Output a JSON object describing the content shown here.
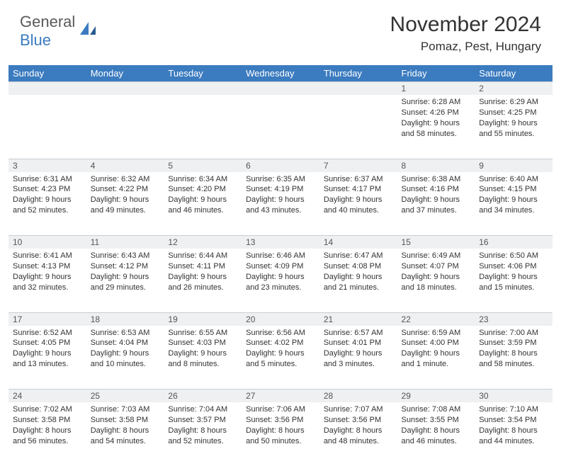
{
  "brand": {
    "part1": "General",
    "part2": "Blue"
  },
  "title": "November 2024",
  "location": "Pomaz, Pest, Hungary",
  "colors": {
    "header_bg": "#3b7bbf",
    "header_fg": "#ffffff",
    "daynum_bg": "#eef0f2",
    "border": "#c9cdd2",
    "text": "#333333",
    "logo_gray": "#5a5a5a",
    "logo_blue": "#3b7bbf"
  },
  "weekdays": [
    "Sunday",
    "Monday",
    "Tuesday",
    "Wednesday",
    "Thursday",
    "Friday",
    "Saturday"
  ],
  "weeks": [
    [
      null,
      null,
      null,
      null,
      null,
      {
        "n": "1",
        "sr": "Sunrise: 6:28 AM",
        "ss": "Sunset: 4:26 PM",
        "d1": "Daylight: 9 hours",
        "d2": "and 58 minutes."
      },
      {
        "n": "2",
        "sr": "Sunrise: 6:29 AM",
        "ss": "Sunset: 4:25 PM",
        "d1": "Daylight: 9 hours",
        "d2": "and 55 minutes."
      }
    ],
    [
      {
        "n": "3",
        "sr": "Sunrise: 6:31 AM",
        "ss": "Sunset: 4:23 PM",
        "d1": "Daylight: 9 hours",
        "d2": "and 52 minutes."
      },
      {
        "n": "4",
        "sr": "Sunrise: 6:32 AM",
        "ss": "Sunset: 4:22 PM",
        "d1": "Daylight: 9 hours",
        "d2": "and 49 minutes."
      },
      {
        "n": "5",
        "sr": "Sunrise: 6:34 AM",
        "ss": "Sunset: 4:20 PM",
        "d1": "Daylight: 9 hours",
        "d2": "and 46 minutes."
      },
      {
        "n": "6",
        "sr": "Sunrise: 6:35 AM",
        "ss": "Sunset: 4:19 PM",
        "d1": "Daylight: 9 hours",
        "d2": "and 43 minutes."
      },
      {
        "n": "7",
        "sr": "Sunrise: 6:37 AM",
        "ss": "Sunset: 4:17 PM",
        "d1": "Daylight: 9 hours",
        "d2": "and 40 minutes."
      },
      {
        "n": "8",
        "sr": "Sunrise: 6:38 AM",
        "ss": "Sunset: 4:16 PM",
        "d1": "Daylight: 9 hours",
        "d2": "and 37 minutes."
      },
      {
        "n": "9",
        "sr": "Sunrise: 6:40 AM",
        "ss": "Sunset: 4:15 PM",
        "d1": "Daylight: 9 hours",
        "d2": "and 34 minutes."
      }
    ],
    [
      {
        "n": "10",
        "sr": "Sunrise: 6:41 AM",
        "ss": "Sunset: 4:13 PM",
        "d1": "Daylight: 9 hours",
        "d2": "and 32 minutes."
      },
      {
        "n": "11",
        "sr": "Sunrise: 6:43 AM",
        "ss": "Sunset: 4:12 PM",
        "d1": "Daylight: 9 hours",
        "d2": "and 29 minutes."
      },
      {
        "n": "12",
        "sr": "Sunrise: 6:44 AM",
        "ss": "Sunset: 4:11 PM",
        "d1": "Daylight: 9 hours",
        "d2": "and 26 minutes."
      },
      {
        "n": "13",
        "sr": "Sunrise: 6:46 AM",
        "ss": "Sunset: 4:09 PM",
        "d1": "Daylight: 9 hours",
        "d2": "and 23 minutes."
      },
      {
        "n": "14",
        "sr": "Sunrise: 6:47 AM",
        "ss": "Sunset: 4:08 PM",
        "d1": "Daylight: 9 hours",
        "d2": "and 21 minutes."
      },
      {
        "n": "15",
        "sr": "Sunrise: 6:49 AM",
        "ss": "Sunset: 4:07 PM",
        "d1": "Daylight: 9 hours",
        "d2": "and 18 minutes."
      },
      {
        "n": "16",
        "sr": "Sunrise: 6:50 AM",
        "ss": "Sunset: 4:06 PM",
        "d1": "Daylight: 9 hours",
        "d2": "and 15 minutes."
      }
    ],
    [
      {
        "n": "17",
        "sr": "Sunrise: 6:52 AM",
        "ss": "Sunset: 4:05 PM",
        "d1": "Daylight: 9 hours",
        "d2": "and 13 minutes."
      },
      {
        "n": "18",
        "sr": "Sunrise: 6:53 AM",
        "ss": "Sunset: 4:04 PM",
        "d1": "Daylight: 9 hours",
        "d2": "and 10 minutes."
      },
      {
        "n": "19",
        "sr": "Sunrise: 6:55 AM",
        "ss": "Sunset: 4:03 PM",
        "d1": "Daylight: 9 hours",
        "d2": "and 8 minutes."
      },
      {
        "n": "20",
        "sr": "Sunrise: 6:56 AM",
        "ss": "Sunset: 4:02 PM",
        "d1": "Daylight: 9 hours",
        "d2": "and 5 minutes."
      },
      {
        "n": "21",
        "sr": "Sunrise: 6:57 AM",
        "ss": "Sunset: 4:01 PM",
        "d1": "Daylight: 9 hours",
        "d2": "and 3 minutes."
      },
      {
        "n": "22",
        "sr": "Sunrise: 6:59 AM",
        "ss": "Sunset: 4:00 PM",
        "d1": "Daylight: 9 hours",
        "d2": "and 1 minute."
      },
      {
        "n": "23",
        "sr": "Sunrise: 7:00 AM",
        "ss": "Sunset: 3:59 PM",
        "d1": "Daylight: 8 hours",
        "d2": "and 58 minutes."
      }
    ],
    [
      {
        "n": "24",
        "sr": "Sunrise: 7:02 AM",
        "ss": "Sunset: 3:58 PM",
        "d1": "Daylight: 8 hours",
        "d2": "and 56 minutes."
      },
      {
        "n": "25",
        "sr": "Sunrise: 7:03 AM",
        "ss": "Sunset: 3:58 PM",
        "d1": "Daylight: 8 hours",
        "d2": "and 54 minutes."
      },
      {
        "n": "26",
        "sr": "Sunrise: 7:04 AM",
        "ss": "Sunset: 3:57 PM",
        "d1": "Daylight: 8 hours",
        "d2": "and 52 minutes."
      },
      {
        "n": "27",
        "sr": "Sunrise: 7:06 AM",
        "ss": "Sunset: 3:56 PM",
        "d1": "Daylight: 8 hours",
        "d2": "and 50 minutes."
      },
      {
        "n": "28",
        "sr": "Sunrise: 7:07 AM",
        "ss": "Sunset: 3:56 PM",
        "d1": "Daylight: 8 hours",
        "d2": "and 48 minutes."
      },
      {
        "n": "29",
        "sr": "Sunrise: 7:08 AM",
        "ss": "Sunset: 3:55 PM",
        "d1": "Daylight: 8 hours",
        "d2": "and 46 minutes."
      },
      {
        "n": "30",
        "sr": "Sunrise: 7:10 AM",
        "ss": "Sunset: 3:54 PM",
        "d1": "Daylight: 8 hours",
        "d2": "and 44 minutes."
      }
    ]
  ]
}
